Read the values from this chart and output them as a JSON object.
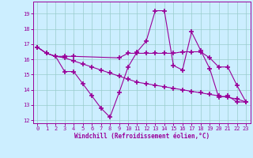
{
  "xlabel": "Windchill (Refroidissement éolien,°C)",
  "bg_color": "#cceeff",
  "line_color": "#990099",
  "grid_color": "#99cccc",
  "xlim": [
    -0.5,
    23.5
  ],
  "ylim": [
    11.8,
    19.8
  ],
  "yticks": [
    12,
    13,
    14,
    15,
    16,
    17,
    18,
    19
  ],
  "xticks": [
    0,
    1,
    2,
    3,
    4,
    5,
    6,
    7,
    8,
    9,
    10,
    11,
    12,
    13,
    14,
    15,
    16,
    17,
    18,
    19,
    20,
    21,
    22,
    23
  ],
  "series1_x": [
    0,
    1,
    2,
    3,
    4,
    5,
    6,
    7,
    8,
    9,
    10,
    11,
    12,
    13,
    14,
    15,
    16,
    17,
    18,
    19,
    20,
    21,
    22,
    23
  ],
  "series1_y": [
    16.8,
    16.4,
    16.2,
    15.2,
    15.2,
    14.4,
    13.6,
    12.8,
    12.2,
    13.8,
    15.5,
    16.5,
    17.2,
    19.2,
    19.2,
    15.6,
    15.3,
    17.8,
    16.6,
    15.4,
    13.5,
    13.6,
    13.2,
    13.2
  ],
  "series2_x": [
    0,
    1,
    2,
    3,
    4,
    9,
    10,
    11,
    12,
    13,
    14,
    15,
    16,
    17,
    18,
    19,
    20,
    21,
    22,
    23
  ],
  "series2_y": [
    16.8,
    16.4,
    16.2,
    16.2,
    16.2,
    16.1,
    16.4,
    16.4,
    16.4,
    16.4,
    16.4,
    16.4,
    16.5,
    16.5,
    16.5,
    16.1,
    15.5,
    15.5,
    14.3,
    13.2
  ],
  "series3_x": [
    0,
    1,
    2,
    3,
    4,
    5,
    6,
    7,
    8,
    9,
    10,
    11,
    12,
    13,
    14,
    15,
    16,
    17,
    18,
    19,
    20,
    21,
    22,
    23
  ],
  "series3_y": [
    16.8,
    16.4,
    16.2,
    16.1,
    15.9,
    15.7,
    15.5,
    15.3,
    15.1,
    14.9,
    14.7,
    14.5,
    14.4,
    14.3,
    14.2,
    14.1,
    14.0,
    13.9,
    13.8,
    13.7,
    13.6,
    13.5,
    13.4,
    13.2
  ]
}
